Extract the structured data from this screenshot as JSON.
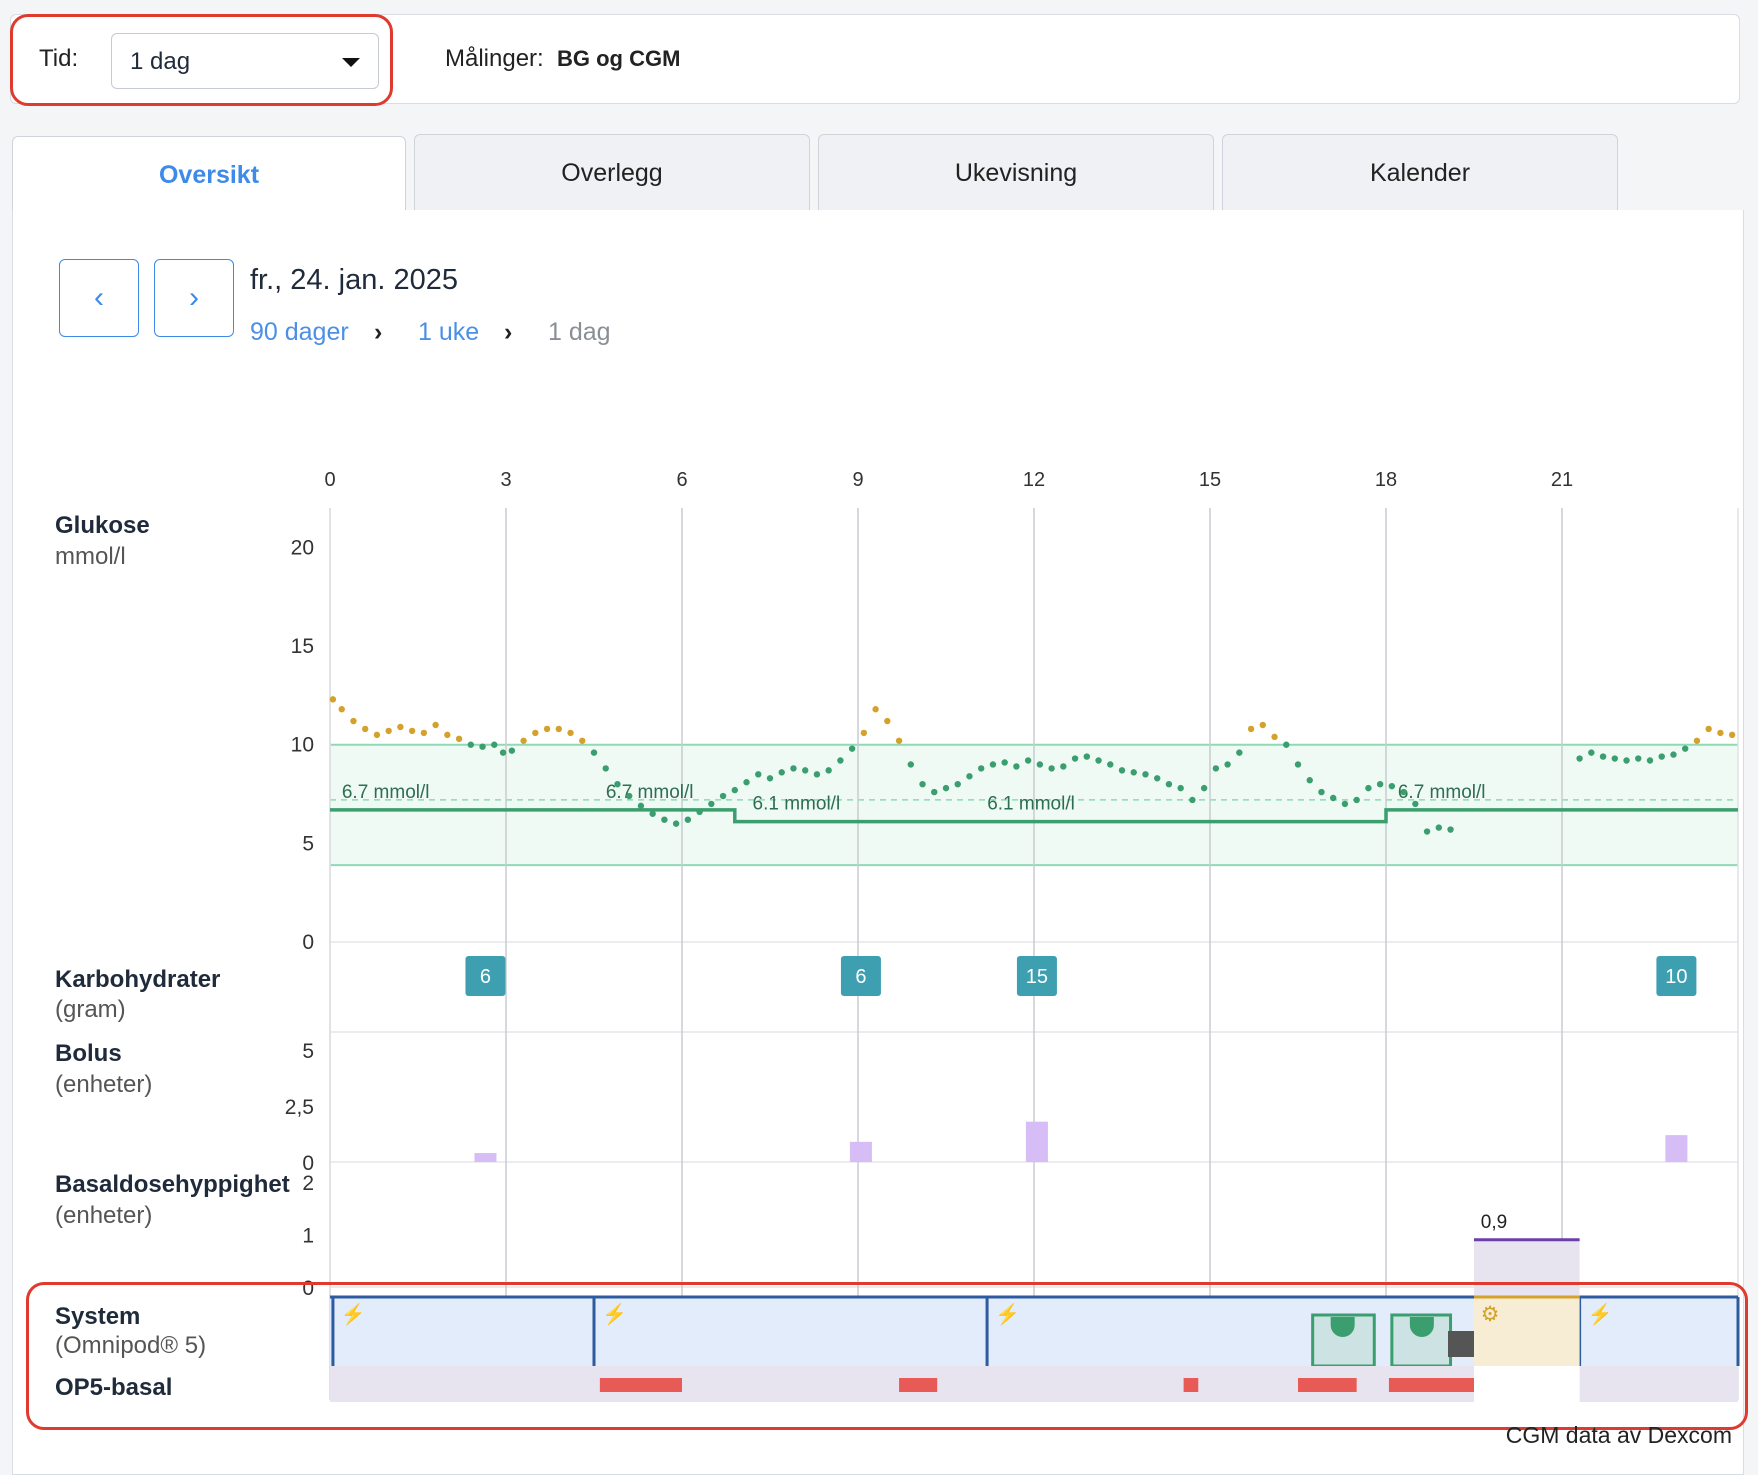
{
  "header": {
    "time_label": "Tid:",
    "time_value": "1 dag",
    "measurements_label": "Målinger:",
    "measurements_value": "BG og CGM"
  },
  "tabs": [
    "Oversikt",
    "Overlegg",
    "Ukevisning",
    "Kalender"
  ],
  "nav": {
    "prev": "‹",
    "next": "›",
    "date": "fr., 24. jan. 2025",
    "breadcrumb": [
      "90 dager",
      "1 uke",
      "1 dag"
    ]
  },
  "rows": {
    "glucose": {
      "title": "Glukose",
      "unit": "mmol/l"
    },
    "carbs": {
      "title": "Karbohydrater",
      "unit": "(gram)"
    },
    "bolus": {
      "title": "Bolus",
      "unit": "(enheter)"
    },
    "basal": {
      "title": "Basaldosehyppighet",
      "unit": "(enheter)"
    },
    "system": {
      "title": "System",
      "unit": "(Omnipod® 5)"
    },
    "op5": {
      "title": "OP5-basal"
    }
  },
  "footer": "CGM data av Dexcom",
  "colors": {
    "accent": "#3d8ae8",
    "in_range": "#3a9e6e",
    "high": "#d4a22c",
    "carb": "#3d9fb0",
    "bolus": "#d7bdf5",
    "alert": "#e85a55"
  },
  "chart_data": {
    "type": "scatter",
    "x_ticks": [
      "0",
      "3",
      "6",
      "9",
      "12",
      "15",
      "18",
      "21"
    ],
    "y_ticks": [
      "20",
      "15",
      "10",
      "5",
      "0"
    ],
    "ylim": [
      0,
      22
    ],
    "xlim": [
      0,
      24
    ],
    "target_range": [
      3.9,
      10
    ],
    "target_labels": [
      {
        "x": 0.1,
        "text": "6.7 mmol/l"
      },
      {
        "x": 4.6,
        "text": "6.7 mmol/l"
      },
      {
        "x": 7.1,
        "text": "6.1 mmol/l"
      },
      {
        "x": 11.1,
        "text": "6.1 mmol/l"
      },
      {
        "x": 18.1,
        "text": "6.7 mmol/l"
      }
    ],
    "target_steps": [
      [
        0,
        6.7
      ],
      [
        6.9,
        6.7
      ],
      [
        6.9,
        6.1
      ],
      [
        18,
        6.1
      ],
      [
        18,
        6.7
      ],
      [
        24,
        6.7
      ]
    ],
    "glucose": [
      [
        0.05,
        12.3
      ],
      [
        0.2,
        11.8
      ],
      [
        0.4,
        11.2
      ],
      [
        0.6,
        10.8
      ],
      [
        0.8,
        10.5
      ],
      [
        1.0,
        10.7
      ],
      [
        1.2,
        10.9
      ],
      [
        1.4,
        10.7
      ],
      [
        1.6,
        10.6
      ],
      [
        1.8,
        11.0
      ],
      [
        2.0,
        10.5
      ],
      [
        2.2,
        10.3
      ],
      [
        2.4,
        10.0
      ],
      [
        2.6,
        9.9
      ],
      [
        2.8,
        10.0
      ],
      [
        2.95,
        9.6
      ],
      [
        3.1,
        9.7
      ],
      [
        3.3,
        10.2
      ],
      [
        3.5,
        10.6
      ],
      [
        3.7,
        10.8
      ],
      [
        3.9,
        10.8
      ],
      [
        4.1,
        10.6
      ],
      [
        4.3,
        10.2
      ],
      [
        4.5,
        9.6
      ],
      [
        4.7,
        8.8
      ],
      [
        4.9,
        8.0
      ],
      [
        5.1,
        7.4
      ],
      [
        5.3,
        6.9
      ],
      [
        5.5,
        6.5
      ],
      [
        5.7,
        6.2
      ],
      [
        5.9,
        6.0
      ],
      [
        6.1,
        6.2
      ],
      [
        6.3,
        6.6
      ],
      [
        6.5,
        7.0
      ],
      [
        6.7,
        7.4
      ],
      [
        6.9,
        7.7
      ],
      [
        7.1,
        8.1
      ],
      [
        7.3,
        8.5
      ],
      [
        7.5,
        8.3
      ],
      [
        7.7,
        8.6
      ],
      [
        7.9,
        8.8
      ],
      [
        8.1,
        8.7
      ],
      [
        8.3,
        8.5
      ],
      [
        8.5,
        8.7
      ],
      [
        8.7,
        9.2
      ],
      [
        8.9,
        9.8
      ],
      [
        9.1,
        10.6
      ],
      [
        9.3,
        11.8
      ],
      [
        9.5,
        11.2
      ],
      [
        9.7,
        10.2
      ],
      [
        9.9,
        9.0
      ],
      [
        10.1,
        8.0
      ],
      [
        10.3,
        7.6
      ],
      [
        10.5,
        7.8
      ],
      [
        10.7,
        8.0
      ],
      [
        10.9,
        8.4
      ],
      [
        11.1,
        8.8
      ],
      [
        11.3,
        9.0
      ],
      [
        11.5,
        9.1
      ],
      [
        11.7,
        8.9
      ],
      [
        11.9,
        9.2
      ],
      [
        12.1,
        9.0
      ],
      [
        12.3,
        8.8
      ],
      [
        12.5,
        8.9
      ],
      [
        12.7,
        9.3
      ],
      [
        12.9,
        9.4
      ],
      [
        13.1,
        9.2
      ],
      [
        13.3,
        9.0
      ],
      [
        13.5,
        8.7
      ],
      [
        13.7,
        8.6
      ],
      [
        13.9,
        8.5
      ],
      [
        14.1,
        8.3
      ],
      [
        14.3,
        8.0
      ],
      [
        14.5,
        7.8
      ],
      [
        14.7,
        7.2
      ],
      [
        14.9,
        7.8
      ],
      [
        15.1,
        8.8
      ],
      [
        15.3,
        9.0
      ],
      [
        15.5,
        9.6
      ],
      [
        15.7,
        10.8
      ],
      [
        15.9,
        11.0
      ],
      [
        16.1,
        10.4
      ],
      [
        16.3,
        10.0
      ],
      [
        16.5,
        9.0
      ],
      [
        16.7,
        8.2
      ],
      [
        16.9,
        7.6
      ],
      [
        17.1,
        7.3
      ],
      [
        17.3,
        7.0
      ],
      [
        17.5,
        7.2
      ],
      [
        17.7,
        7.8
      ],
      [
        17.9,
        8.0
      ],
      [
        18.1,
        7.9
      ],
      [
        18.3,
        7.6
      ],
      [
        18.5,
        7.0
      ],
      [
        18.7,
        5.6
      ],
      [
        18.9,
        5.8
      ],
      [
        19.1,
        5.7
      ],
      [
        21.3,
        9.3
      ],
      [
        21.5,
        9.6
      ],
      [
        21.7,
        9.4
      ],
      [
        21.9,
        9.3
      ],
      [
        22.1,
        9.2
      ],
      [
        22.3,
        9.3
      ],
      [
        22.5,
        9.2
      ],
      [
        22.7,
        9.4
      ],
      [
        22.9,
        9.5
      ],
      [
        23.1,
        9.8
      ],
      [
        23.3,
        10.2
      ],
      [
        23.5,
        10.8
      ],
      [
        23.7,
        10.6
      ],
      [
        23.9,
        10.5
      ]
    ],
    "carbs": [
      {
        "x": 2.65,
        "value": 6
      },
      {
        "x": 9.05,
        "value": 6
      },
      {
        "x": 12.05,
        "value": 15
      },
      {
        "x": 22.95,
        "value": 10
      }
    ],
    "bolus_ticks": [
      "5",
      "2,5",
      "0"
    ],
    "bolus": [
      {
        "x": 2.65,
        "value": 0.4
      },
      {
        "x": 9.05,
        "value": 0.9
      },
      {
        "x": 12.05,
        "value": 1.8
      },
      {
        "x": 22.95,
        "value": 1.2
      }
    ],
    "basal_ticks": [
      "2",
      "1",
      "0"
    ],
    "basal_manual": {
      "x0": 19.5,
      "x1": 21.3,
      "value": 0.9,
      "label": "0,9"
    },
    "system_mode_changes": [
      0.05,
      4.5,
      11.2,
      21.3
    ],
    "system_limited": [
      {
        "x0": 16.75,
        "x1": 17.8
      },
      {
        "x0": 18.1,
        "x1": 19.1
      }
    ],
    "system_manual": {
      "x0": 19.5,
      "x1": 21.3
    },
    "op5_alerts": [
      {
        "x0": 4.6,
        "x1": 6.0
      },
      {
        "x0": 9.7,
        "x1": 10.35
      },
      {
        "x0": 14.55,
        "x1": 14.8
      },
      {
        "x0": 16.5,
        "x1": 17.5
      },
      {
        "x0": 18.05,
        "x1": 19.5
      }
    ]
  }
}
